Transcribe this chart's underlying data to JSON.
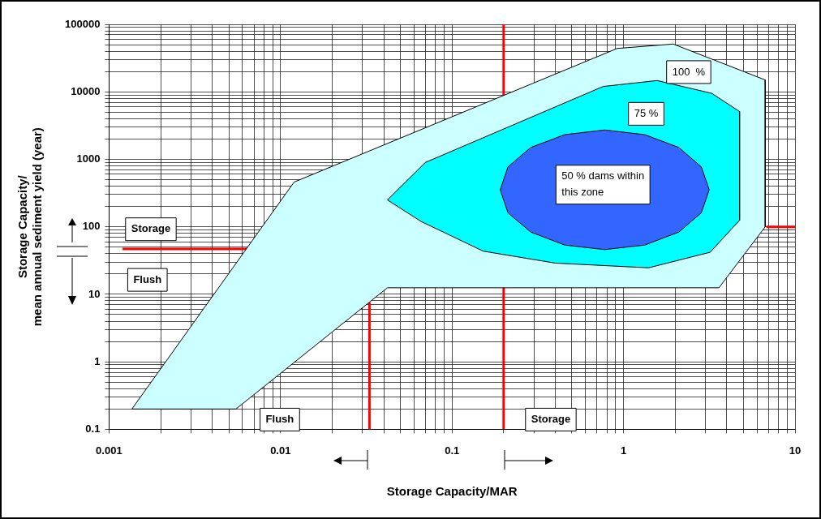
{
  "chart_data": {
    "type": "area",
    "xlabel": "Storage Capacity/MAR",
    "ylabel": "Storage Capacity/\nmean annual sediment yield (year)",
    "log": "xy",
    "grid": true,
    "xlim": [
      0.001,
      10
    ],
    "ylim": [
      0.1,
      100000
    ],
    "xticks": [
      0.001,
      {
        "value": 0.002,
        "label": null
      },
      {
        "value": 0.003,
        "label": null
      },
      {
        "value": 0.004,
        "label": null
      },
      {
        "value": 0.005,
        "label": null
      },
      {
        "value": 0.006,
        "label": null
      },
      {
        "value": 0.007,
        "label": null
      },
      {
        "value": 0.008,
        "label": null
      },
      {
        "value": 0.009,
        "label": null
      },
      0.01,
      {
        "value": 0.02,
        "label": null
      },
      {
        "value": 0.03,
        "label": null
      },
      {
        "value": 0.04,
        "label": null
      },
      {
        "value": 0.05,
        "label": null
      },
      {
        "value": 0.06,
        "label": null
      },
      {
        "value": 0.07,
        "label": null
      },
      {
        "value": 0.08,
        "label": null
      },
      {
        "value": 0.09,
        "label": null
      },
      0.1,
      {
        "value": 0.2,
        "label": null
      },
      {
        "value": 0.3,
        "label": null
      },
      {
        "value": 0.4,
        "label": null
      },
      {
        "value": 0.5,
        "label": null
      },
      {
        "value": 0.6,
        "label": null
      },
      {
        "value": 0.7,
        "label": null
      },
      {
        "value": 0.8,
        "label": null
      },
      {
        "value": 0.9,
        "label": null
      },
      1,
      {
        "value": 2,
        "label": null
      },
      {
        "value": 3,
        "label": null
      },
      {
        "value": 4,
        "label": null
      },
      {
        "value": 5,
        "label": null
      },
      {
        "value": 6,
        "label": null
      },
      {
        "value": 7,
        "label": null
      },
      {
        "value": 8,
        "label": null
      },
      {
        "value": 9,
        "label": null
      },
      10
    ],
    "yticks": [
      0.1,
      {
        "value": 0.2,
        "label": null
      },
      {
        "value": 0.3,
        "label": null
      },
      {
        "value": 0.4,
        "label": null
      },
      {
        "value": 0.5,
        "label": null
      },
      {
        "value": 0.6,
        "label": null
      },
      {
        "value": 0.7,
        "label": null
      },
      {
        "value": 0.8,
        "label": null
      },
      {
        "value": 0.9,
        "label": null
      },
      1,
      {
        "value": 2,
        "label": null
      },
      {
        "value": 3,
        "label": null
      },
      {
        "value": 4,
        "label": null
      },
      {
        "value": 5,
        "label": null
      },
      {
        "value": 6,
        "label": null
      },
      {
        "value": 7,
        "label": null
      },
      {
        "value": 8,
        "label": null
      },
      {
        "value": 9,
        "label": null
      },
      10,
      {
        "value": 20,
        "label": null
      },
      {
        "value": 30,
        "label": null
      },
      {
        "value": 40,
        "label": null
      },
      {
        "value": 50,
        "label": null
      },
      {
        "value": 60,
        "label": null
      },
      {
        "value": 70,
        "label": null
      },
      {
        "value": 80,
        "label": null
      },
      {
        "value": 90,
        "label": null
      },
      100,
      {
        "value": 200,
        "label": null
      },
      {
        "value": 300,
        "label": null
      },
      {
        "value": 400,
        "label": null
      },
      {
        "value": 500,
        "label": null
      },
      {
        "value": 600,
        "label": null
      },
      {
        "value": 700,
        "label": null
      },
      {
        "value": 800,
        "label": null
      },
      {
        "value": 900,
        "label": null
      },
      1000,
      {
        "value": 2000,
        "label": null
      },
      {
        "value": 3000,
        "label": null
      },
      {
        "value": 4000,
        "label": null
      },
      {
        "value": 5000,
        "label": null
      },
      {
        "value": 6000,
        "label": null
      },
      {
        "value": 7000,
        "label": null
      },
      {
        "value": 8000,
        "label": null
      },
      {
        "value": 9000,
        "label": null
      },
      10000,
      {
        "value": 20000,
        "label": null
      },
      {
        "value": 30000,
        "label": null
      },
      {
        "value": 40000,
        "label": null
      },
      {
        "value": 50000,
        "label": null
      },
      {
        "value": 60000,
        "label": null
      },
      {
        "value": 70000,
        "label": null
      },
      {
        "value": 80000,
        "label": null
      },
      {
        "value": 90000,
        "label": null
      },
      100000
    ],
    "series": [
      {
        "type": "line",
        "color": "#ff0000",
        "x": [
          0.2,
          0.2
        ],
        "values": [
          0.1,
          100000
        ]
      },
      {
        "type": "line",
        "color": "#ff0000",
        "x": [
          0.033,
          0.033
        ],
        "values": [
          0.1,
          7.6
        ]
      },
      {
        "type": "line",
        "color": "#ff0000",
        "x": [
          0.0012,
          0.0065
        ],
        "values": [
          47,
          47
        ]
      },
      {
        "type": "line",
        "color": "#ff0000",
        "x": [
          6.8,
          10
        ],
        "values": [
          100,
          100
        ]
      },
      {
        "name": "100  %",
        "color": "#ccffff",
        "x": [
          0.00136,
          0.012,
          0.92,
          1.95,
          6.7,
          6.7,
          3.6,
          0.042,
          0.0055,
          0.00136
        ],
        "values": [
          0.2,
          460,
          44000,
          51000,
          15000,
          100,
          12.5,
          12.5,
          0.2,
          0.2
        ]
      },
      {
        "name": "75 %",
        "color": "#00ffff",
        "x": [
          0.042,
          0.07,
          0.76,
          1.57,
          3.27,
          4.75,
          4.75,
          3.2,
          1.4,
          0.4,
          0.152,
          0.066,
          0.042
        ],
        "values": [
          250,
          900,
          12000,
          14700,
          9500,
          5100,
          125,
          42,
          24.7,
          29,
          43.6,
          120,
          250
        ]
      },
      {
        "name": "50 % dams within this zone",
        "color": "#3366ff",
        "x": [
          3.16,
          2.84,
          2.1,
          1.33,
          0.777,
          0.454,
          0.288,
          0.212,
          0.191,
          0.212,
          0.288,
          0.454,
          0.777,
          1.33,
          2.1,
          2.84,
          3.16
        ],
        "values": [
          353,
          773,
          1500,
          2320,
          2720,
          2320,
          1500,
          773,
          353,
          161,
          83.5,
          53.7,
          46,
          53.7,
          83.5,
          161,
          353
        ]
      }
    ],
    "annotations": [
      "Storage",
      "Flush",
      "Flush",
      "Storage"
    ]
  }
}
